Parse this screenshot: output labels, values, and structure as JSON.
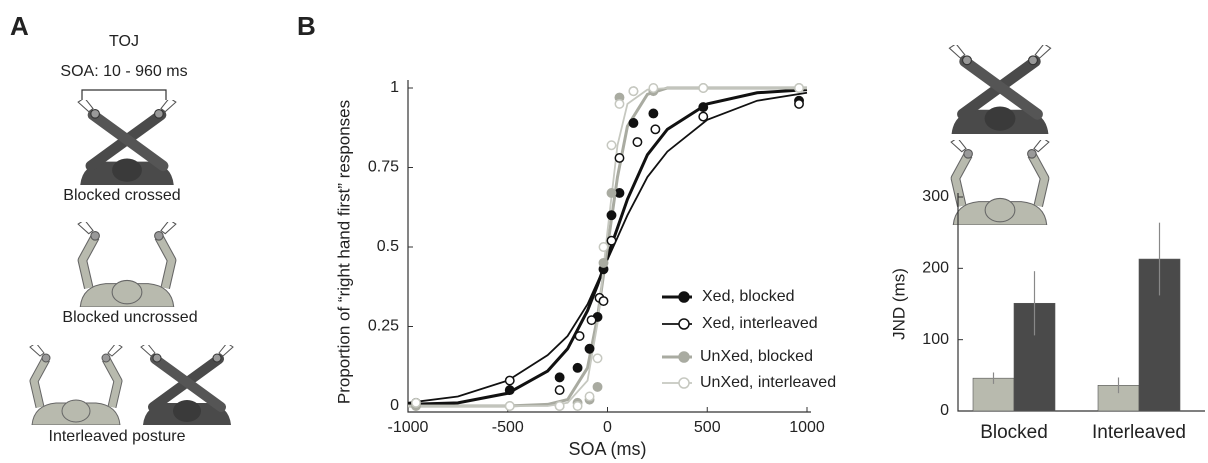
{
  "panel_a": {
    "label": "A",
    "title": "TOJ",
    "soa": "SOA: 10 - 960 ms",
    "conditions": [
      "Blocked crossed",
      "Blocked uncrossed",
      "Interleaved posture"
    ]
  },
  "panel_b": {
    "label": "B"
  },
  "chart_data": [
    {
      "type": "line",
      "xlabel": "SOA (ms)",
      "ylabel": "Proportion of “right hand first” responses",
      "xlim": [
        -1000,
        1000
      ],
      "xticks": [
        -1000,
        -500,
        0,
        500,
        1000
      ],
      "ylim": [
        0,
        1
      ],
      "yticks": [
        0,
        0.25,
        0.5,
        0.75,
        1
      ],
      "fit_x": [
        -1000,
        -750,
        -500,
        -300,
        -200,
        -100,
        -50,
        0,
        50,
        100,
        200,
        300,
        500,
        750,
        1000
      ],
      "series": [
        {
          "name": "Xed, blocked",
          "color": "#111111",
          "marker": "filled",
          "line_width": 3,
          "x": [
            -490,
            -240,
            -150,
            -90,
            -50,
            -20,
            20,
            60,
            130,
            230,
            480,
            960
          ],
          "values": [
            0.05,
            0.09,
            0.12,
            0.18,
            0.28,
            0.43,
            0.6,
            0.67,
            0.89,
            0.92,
            0.94,
            0.96
          ],
          "fit": [
            0.005,
            0.01,
            0.04,
            0.11,
            0.18,
            0.3,
            0.38,
            0.47,
            0.56,
            0.65,
            0.79,
            0.87,
            0.95,
            0.985,
            0.995
          ]
        },
        {
          "name": "Xed, interleaved",
          "color": "#111111",
          "marker": "open",
          "line_width": 1.8,
          "x": [
            -960,
            -490,
            -240,
            -140,
            -80,
            -40,
            -20,
            20,
            60,
            150,
            240,
            480,
            960
          ],
          "values": [
            0.01,
            0.08,
            0.05,
            0.22,
            0.27,
            0.34,
            0.33,
            0.52,
            0.78,
            0.83,
            0.87,
            0.91,
            0.95
          ],
          "fit": [
            0.01,
            0.03,
            0.08,
            0.16,
            0.22,
            0.32,
            0.39,
            0.46,
            0.53,
            0.6,
            0.72,
            0.8,
            0.9,
            0.96,
            0.985
          ]
        },
        {
          "name": "UnXed, blocked",
          "color": "#a9aba1",
          "marker": "filled",
          "line_width": 3,
          "x": [
            -960,
            -490,
            -240,
            -150,
            -90,
            -50,
            -20,
            20,
            60,
            130,
            230,
            480,
            960
          ],
          "values": [
            0,
            0,
            0,
            0.01,
            0.02,
            0.06,
            0.45,
            0.67,
            0.97,
            0.99,
            0.99,
            1,
            1
          ],
          "fit": [
            0,
            0,
            0,
            0.005,
            0.02,
            0.12,
            0.28,
            0.5,
            0.72,
            0.88,
            0.98,
            1,
            1,
            1,
            1
          ]
        },
        {
          "name": "UnXed, interleaved",
          "color": "#c6c8c0",
          "marker": "open",
          "line_width": 1.8,
          "x": [
            -960,
            -490,
            -240,
            -150,
            -90,
            -50,
            -20,
            20,
            60,
            130,
            230,
            480,
            960
          ],
          "values": [
            0.01,
            0,
            0,
            0,
            0.03,
            0.15,
            0.5,
            0.82,
            0.95,
            0.99,
            1,
            1,
            1
          ],
          "fit": [
            0,
            0,
            0,
            0,
            0.01,
            0.08,
            0.26,
            0.55,
            0.82,
            0.95,
            0.995,
            1,
            1,
            1,
            1
          ]
        }
      ]
    },
    {
      "type": "bar",
      "ylabel": "JND (ms)",
      "categories": [
        "Blocked",
        "Interleaved"
      ],
      "ylim": [
        0,
        300
      ],
      "yticks": [
        0,
        100,
        200,
        300
      ],
      "series": [
        {
          "color": "#b8baae",
          "values": [
            46,
            36
          ],
          "errors": [
            8,
            11
          ]
        },
        {
          "color": "#4a4a4a",
          "values": [
            151,
            213
          ],
          "errors": [
            45,
            51
          ]
        }
      ]
    }
  ]
}
